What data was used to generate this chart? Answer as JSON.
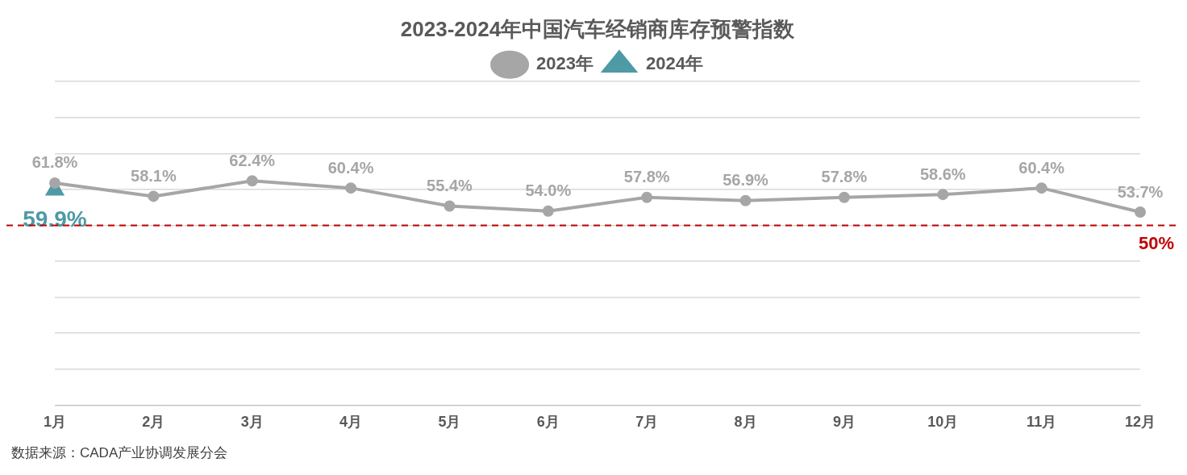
{
  "chart_data": {
    "type": "line",
    "title": "2023-2024年中国汽车经销商库存预警指数",
    "categories": [
      "1月",
      "2月",
      "3月",
      "4月",
      "5月",
      "6月",
      "7月",
      "8月",
      "9月",
      "10月",
      "11月",
      "12月"
    ],
    "series": [
      {
        "name": "2023年",
        "color": "#a6a6a6",
        "marker": "circle",
        "values": [
          61.8,
          58.1,
          62.4,
          60.4,
          55.4,
          54.0,
          57.8,
          56.9,
          57.8,
          58.6,
          60.4,
          53.7
        ],
        "value_labels": [
          "61.8%",
          "58.1%",
          "62.4%",
          "60.4%",
          "55.4%",
          "54.0%",
          "57.8%",
          "56.9%",
          "57.8%",
          "58.6%",
          "60.4%",
          "53.7%"
        ]
      },
      {
        "name": "2024年",
        "color": "#4e9aa6",
        "marker": "triangle",
        "values": [
          59.9,
          null,
          null,
          null,
          null,
          null,
          null,
          null,
          null,
          null,
          null,
          null
        ],
        "value_labels": [
          "59.9%",
          null,
          null,
          null,
          null,
          null,
          null,
          null,
          null,
          null,
          null,
          null
        ]
      }
    ],
    "ylim": [
      0,
      90
    ],
    "yticks": [
      {
        "value": 0,
        "label": null
      },
      {
        "value": 10,
        "label": null
      },
      {
        "value": 20,
        "label": null
      },
      {
        "value": 30,
        "label": null
      },
      {
        "value": 40,
        "label": null
      },
      {
        "value": 50,
        "label": null
      },
      {
        "value": 60,
        "label": null
      },
      {
        "value": 70,
        "label": null
      },
      {
        "value": 80,
        "label": null
      },
      {
        "value": 90,
        "label": null
      }
    ],
    "tick_labels": "x",
    "grid": "y",
    "legend": "top",
    "line_style": "solid",
    "ref_lines": [
      {
        "axis": "y",
        "value": 50,
        "label": "50%",
        "color": "#c00000",
        "line_style": "dashed"
      }
    ],
    "annotations": [
      "数据来源：CADA产业协调发展分会"
    ]
  }
}
